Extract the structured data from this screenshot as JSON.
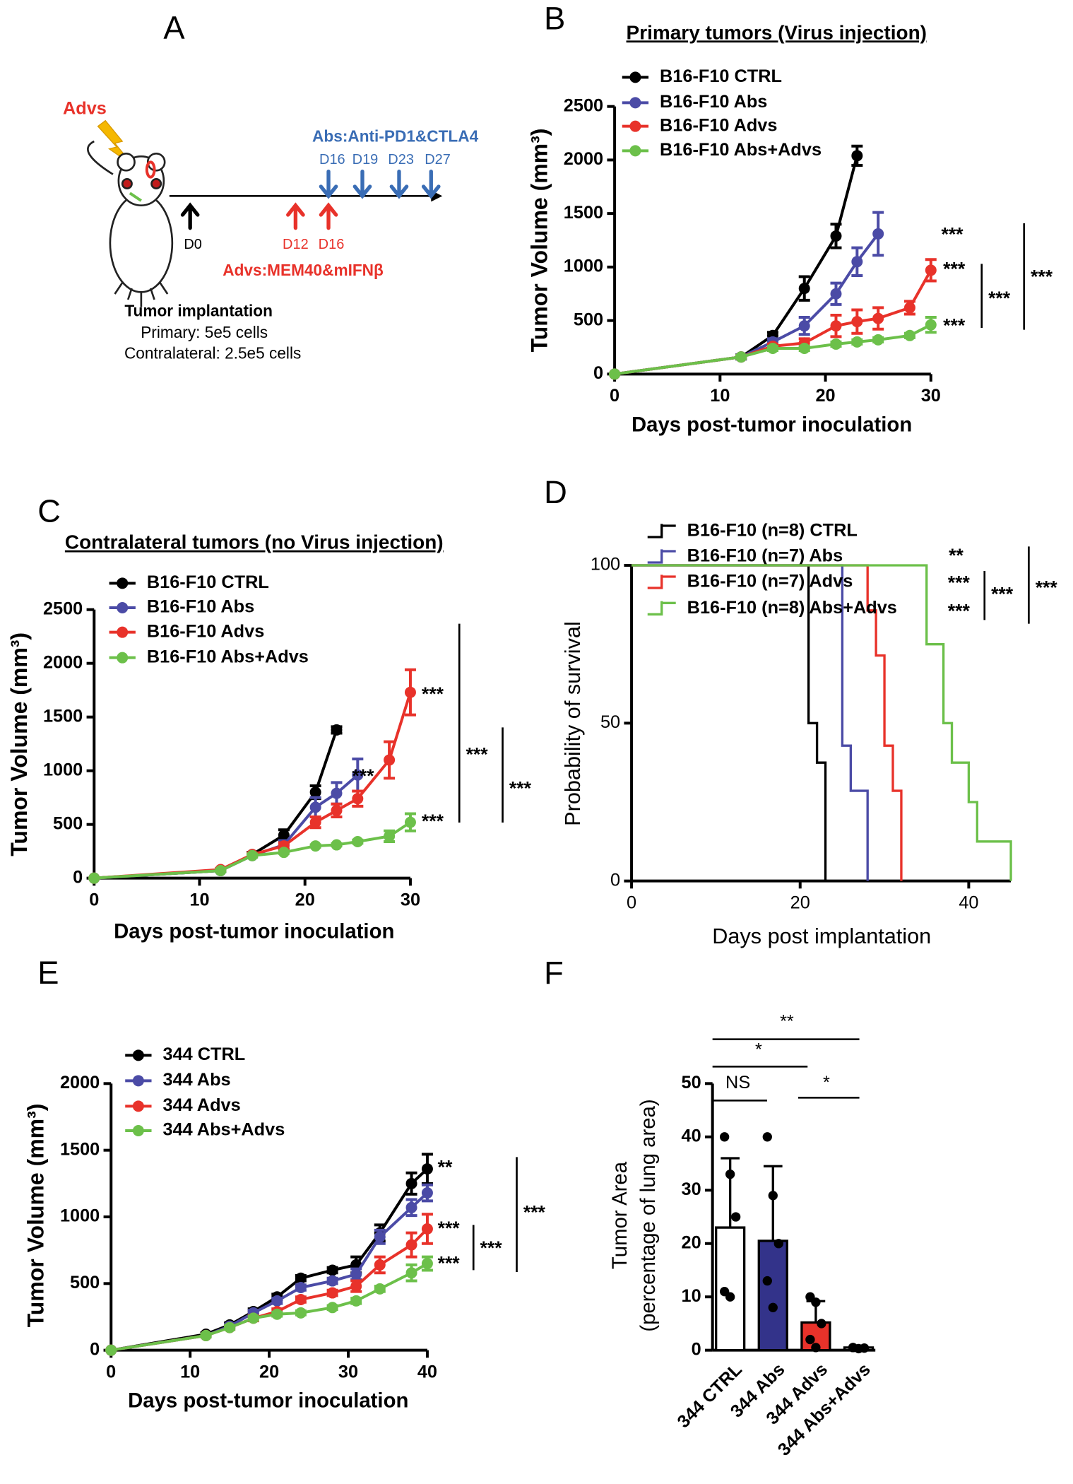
{
  "diagram": {
    "panel": "A",
    "advs": "Advs",
    "abs_schedule": "Abs:Anti-PD1&CTLA4",
    "abs_days": [
      "D16",
      "D19",
      "D23",
      "D27"
    ],
    "start_day": "D0",
    "advs_days": [
      "D12",
      "D16"
    ],
    "advs_schedule": "Advs:MEM40&mIFNβ",
    "caption": [
      "Tumor implantation",
      "Primary: 5e5 cells",
      "Contralateral: 2.5e5 cells"
    ]
  },
  "chart_data": [
    {
      "type": "line",
      "panel": "B",
      "title": "Primary tumors (Virus injection)",
      "xlabel": "Days post-tumor inoculation",
      "ylabel": "Tumor  Volume (mm³)",
      "xlim": [
        0,
        30
      ],
      "xticks": [
        0,
        10,
        20,
        30
      ],
      "ylim": [
        0,
        2500
      ],
      "yticks": [
        0,
        500,
        1000,
        1500,
        2000,
        2500
      ],
      "series": [
        {
          "name": "B16-F10 CTRL",
          "color": "#000000",
          "x": [
            0,
            12,
            15,
            18,
            21,
            23
          ],
          "values": [
            0,
            160,
            360,
            800,
            1290,
            2040
          ],
          "errors": [
            0,
            20,
            30,
            110,
            110,
            90
          ]
        },
        {
          "name": "B16-F10 Abs",
          "color": "#4b4ba6",
          "x": [
            0,
            12,
            15,
            18,
            21,
            23,
            25
          ],
          "values": [
            0,
            160,
            300,
            450,
            750,
            1050,
            1310
          ],
          "errors": [
            0,
            20,
            30,
            80,
            100,
            130,
            200
          ]
        },
        {
          "name": "B16-F10 Advs",
          "color": "#e8322a",
          "x": [
            0,
            12,
            15,
            18,
            21,
            23,
            25,
            28,
            30
          ],
          "values": [
            0,
            160,
            260,
            290,
            450,
            490,
            520,
            620,
            970
          ],
          "errors": [
            0,
            15,
            20,
            40,
            100,
            110,
            100,
            60,
            100
          ]
        },
        {
          "name": "B16-F10 Abs+Advs",
          "color": "#6cc04a",
          "x": [
            0,
            12,
            15,
            18,
            21,
            23,
            25,
            28,
            30
          ],
          "values": [
            0,
            160,
            240,
            240,
            280,
            300,
            320,
            360,
            460
          ],
          "errors": [
            0,
            15,
            20,
            20,
            20,
            20,
            20,
            20,
            70
          ]
        }
      ],
      "annotations": [
        "***",
        "***",
        "***",
        "***",
        "***"
      ]
    },
    {
      "type": "line",
      "panel": "C",
      "title": "Contralateral tumors (no Virus injection)",
      "xlabel": "Days post-tumor inoculation",
      "ylabel": "Tumor  Volume (mm³)",
      "xlim": [
        0,
        30
      ],
      "xticks": [
        0,
        10,
        20,
        30
      ],
      "ylim": [
        0,
        2500
      ],
      "yticks": [
        0,
        500,
        1000,
        1500,
        2000,
        2500
      ],
      "series": [
        {
          "name": "B16-F10 CTRL",
          "color": "#000000",
          "x": [
            0,
            12,
            15,
            18,
            21,
            23
          ],
          "values": [
            0,
            70,
            220,
            400,
            800,
            1380
          ],
          "errors": [
            0,
            10,
            20,
            50,
            60,
            30
          ]
        },
        {
          "name": "B16-F10 Abs",
          "color": "#4b4ba6",
          "x": [
            0,
            12,
            15,
            18,
            21,
            23,
            25
          ],
          "values": [
            0,
            70,
            210,
            310,
            660,
            790,
            960
          ],
          "errors": [
            0,
            10,
            15,
            40,
            90,
            100,
            150
          ]
        },
        {
          "name": "B16-F10 Advs",
          "color": "#e8322a",
          "x": [
            0,
            12,
            15,
            18,
            21,
            23,
            25,
            28,
            30
          ],
          "values": [
            0,
            80,
            220,
            300,
            520,
            630,
            740,
            1100,
            1730
          ],
          "errors": [
            0,
            10,
            15,
            30,
            50,
            60,
            70,
            170,
            210
          ]
        },
        {
          "name": "B16-F10 Abs+Advs",
          "color": "#6cc04a",
          "x": [
            0,
            12,
            15,
            18,
            21,
            23,
            25,
            28,
            30
          ],
          "values": [
            0,
            70,
            210,
            240,
            300,
            310,
            340,
            390,
            520
          ],
          "errors": [
            0,
            10,
            15,
            10,
            10,
            10,
            15,
            50,
            80
          ]
        }
      ],
      "annotations": [
        "***",
        "***",
        "***",
        "***",
        "***"
      ]
    },
    {
      "type": "step",
      "panel": "D",
      "xlabel": "Days post implantation",
      "ylabel": "Probability of survival",
      "xlim": [
        0,
        45
      ],
      "xticks": [
        0,
        20,
        40
      ],
      "ylim": [
        0,
        100
      ],
      "yticks": [
        0,
        50,
        100
      ],
      "series": [
        {
          "name": "B16-F10 (n=8) CTRL",
          "color": "#000000",
          "x": [
            0,
            21,
            22,
            23
          ],
          "values": [
            100,
            50,
            37.5,
            0
          ]
        },
        {
          "name": "B16-F10 (n=7) Abs",
          "color": "#4b4ba6",
          "x": [
            0,
            25,
            26,
            28
          ],
          "values": [
            100,
            42.86,
            28.57,
            0
          ]
        },
        {
          "name": "B16-F10 (n=7) Advs",
          "color": "#e8322a",
          "x": [
            0,
            28,
            29,
            30,
            31,
            32
          ],
          "values": [
            100,
            85.71,
            71.43,
            42.86,
            28.57,
            0
          ]
        },
        {
          "name": "B16-F10 (n=8) Abs+Advs",
          "color": "#6cc04a",
          "x": [
            0,
            35,
            37,
            38,
            40,
            41,
            45
          ],
          "values": [
            100,
            75,
            50,
            37.5,
            25,
            12.5,
            0
          ]
        }
      ],
      "annotations": [
        "**",
        "***",
        "***",
        "***",
        "***"
      ]
    },
    {
      "type": "line",
      "panel": "E",
      "xlabel": "Days post-tumor inoculation",
      "ylabel": "Tumor  Volume (mm³)",
      "xlim": [
        0,
        40
      ],
      "xticks": [
        0,
        10,
        20,
        30,
        40
      ],
      "ylim": [
        0,
        2000
      ],
      "yticks": [
        0,
        500,
        1000,
        1500,
        2000
      ],
      "series": [
        {
          "name": "344 CTRL",
          "color": "#000000",
          "x": [
            0,
            12,
            15,
            18,
            21,
            24,
            28,
            31,
            34,
            38,
            40
          ],
          "values": [
            0,
            120,
            190,
            290,
            400,
            540,
            600,
            640,
            880,
            1250,
            1360
          ],
          "errors": [
            0,
            10,
            15,
            20,
            20,
            20,
            20,
            60,
            60,
            80,
            110
          ]
        },
        {
          "name": "344 Abs",
          "color": "#4b4ba6",
          "x": [
            0,
            12,
            15,
            18,
            21,
            24,
            28,
            31,
            34,
            38,
            40
          ],
          "values": [
            0,
            110,
            180,
            280,
            370,
            470,
            520,
            570,
            850,
            1070,
            1180
          ],
          "errors": [
            0,
            10,
            15,
            20,
            20,
            20,
            20,
            40,
            50,
            60,
            60
          ]
        },
        {
          "name": "344 Advs",
          "color": "#e8322a",
          "x": [
            0,
            12,
            15,
            18,
            21,
            24,
            28,
            31,
            34,
            38,
            40
          ],
          "values": [
            0,
            110,
            170,
            240,
            290,
            380,
            430,
            480,
            640,
            790,
            910
          ],
          "errors": [
            0,
            10,
            15,
            20,
            20,
            20,
            20,
            40,
            60,
            90,
            110
          ]
        },
        {
          "name": "344 Abs+Advs",
          "color": "#6cc04a",
          "x": [
            0,
            12,
            15,
            18,
            21,
            24,
            28,
            31,
            34,
            38,
            40
          ],
          "values": [
            0,
            110,
            170,
            240,
            270,
            280,
            320,
            370,
            460,
            580,
            650
          ],
          "errors": [
            0,
            10,
            15,
            15,
            15,
            15,
            15,
            20,
            20,
            60,
            50
          ]
        }
      ],
      "annotations": [
        "**",
        "***",
        "***",
        "***",
        "***"
      ]
    },
    {
      "type": "bar",
      "panel": "F",
      "ylabel": [
        "Tumor Area",
        "(percentage of lung area)"
      ],
      "categories": [
        "344 CTRL",
        "344 Abs",
        "344 Advs",
        "344 Abs+Advs"
      ],
      "values": [
        23,
        20.5,
        5.2,
        0.5
      ],
      "errors": [
        13,
        14,
        4,
        0.2
      ],
      "colors": [
        "#ffffff",
        "#33338a",
        "#e8322a",
        "#ffffff"
      ],
      "points": [
        [
          40,
          33,
          25,
          11,
          10
        ],
        [
          40,
          29,
          20,
          13,
          8
        ],
        [
          10,
          9,
          5,
          2,
          0.5
        ],
        [
          0.5,
          0.3,
          0.4,
          0.5
        ]
      ],
      "ylim": [
        0,
        50
      ],
      "yticks": [
        0,
        10,
        20,
        30,
        40,
        50
      ],
      "annotations": [
        "NS",
        "*",
        "**",
        "*"
      ]
    }
  ]
}
